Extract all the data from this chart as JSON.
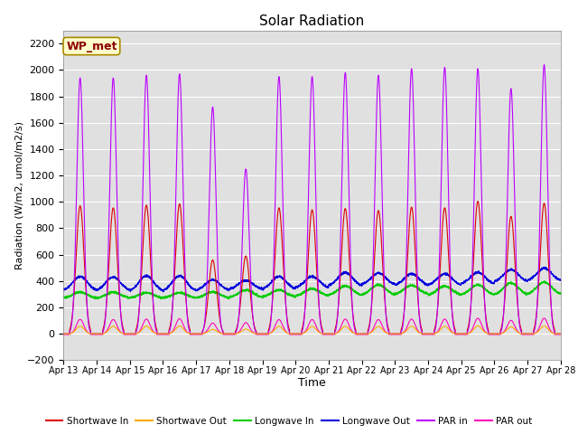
{
  "title": "Solar Radiation",
  "xlabel": "Time",
  "ylabel": "Radiation (W/m2, umol/m2/s)",
  "ylim": [
    -200,
    2300
  ],
  "yticks": [
    -200,
    0,
    200,
    400,
    600,
    800,
    1000,
    1200,
    1400,
    1600,
    1800,
    2000,
    2200
  ],
  "num_days": 15,
  "points_per_day": 288,
  "station_label": "WP_met",
  "background_color": "#e0e0e0",
  "fig_background": "#ffffff",
  "series": {
    "shortwave_in": {
      "color": "#dd0000",
      "label": "Shortwave In",
      "lw": 0.8
    },
    "shortwave_out": {
      "color": "#ffaa00",
      "label": "Shortwave Out",
      "lw": 0.8
    },
    "longwave_in": {
      "color": "#00cc00",
      "label": "Longwave In",
      "lw": 0.8
    },
    "longwave_out": {
      "color": "#0000dd",
      "label": "Longwave Out",
      "lw": 0.8
    },
    "par_in": {
      "color": "#bb00ff",
      "label": "PAR in",
      "lw": 0.8
    },
    "par_out": {
      "color": "#ff00bb",
      "label": "PAR out",
      "lw": 0.8
    }
  },
  "day_peaks_par": [
    1940,
    1940,
    1960,
    1970,
    1720,
    1250,
    1950,
    1950,
    1980,
    1960,
    2010,
    2020,
    2010,
    1860,
    2040
  ],
  "sw_peaks": [
    970,
    955,
    975,
    985,
    560,
    590,
    955,
    940,
    950,
    935,
    960,
    955,
    1005,
    890,
    990
  ],
  "lw_in_base": [
    270,
    270,
    270,
    270,
    270,
    275,
    278,
    285,
    290,
    292,
    298,
    292,
    292,
    292,
    298
  ],
  "lw_in_peak": [
    315,
    315,
    312,
    312,
    318,
    332,
    332,
    342,
    362,
    372,
    368,
    362,
    372,
    386,
    392
  ],
  "lw_out_base": [
    325,
    325,
    320,
    320,
    325,
    335,
    335,
    345,
    360,
    370,
    365,
    365,
    375,
    392,
    400
  ],
  "lw_out_peak": [
    435,
    430,
    440,
    440,
    410,
    405,
    435,
    435,
    465,
    460,
    455,
    455,
    465,
    488,
    498
  ],
  "par_out_peaks": [
    110,
    108,
    112,
    115,
    82,
    85,
    108,
    108,
    112,
    108,
    112,
    112,
    118,
    102,
    118
  ],
  "xtick_labels": [
    "Apr 13",
    "Apr 14",
    "Apr 15",
    "Apr 16",
    "Apr 17",
    "Apr 18",
    "Apr 19",
    "Apr 20",
    "Apr 21",
    "Apr 22",
    "Apr 23",
    "Apr 24",
    "Apr 25",
    "Apr 26",
    "Apr 27",
    "Apr 28"
  ]
}
